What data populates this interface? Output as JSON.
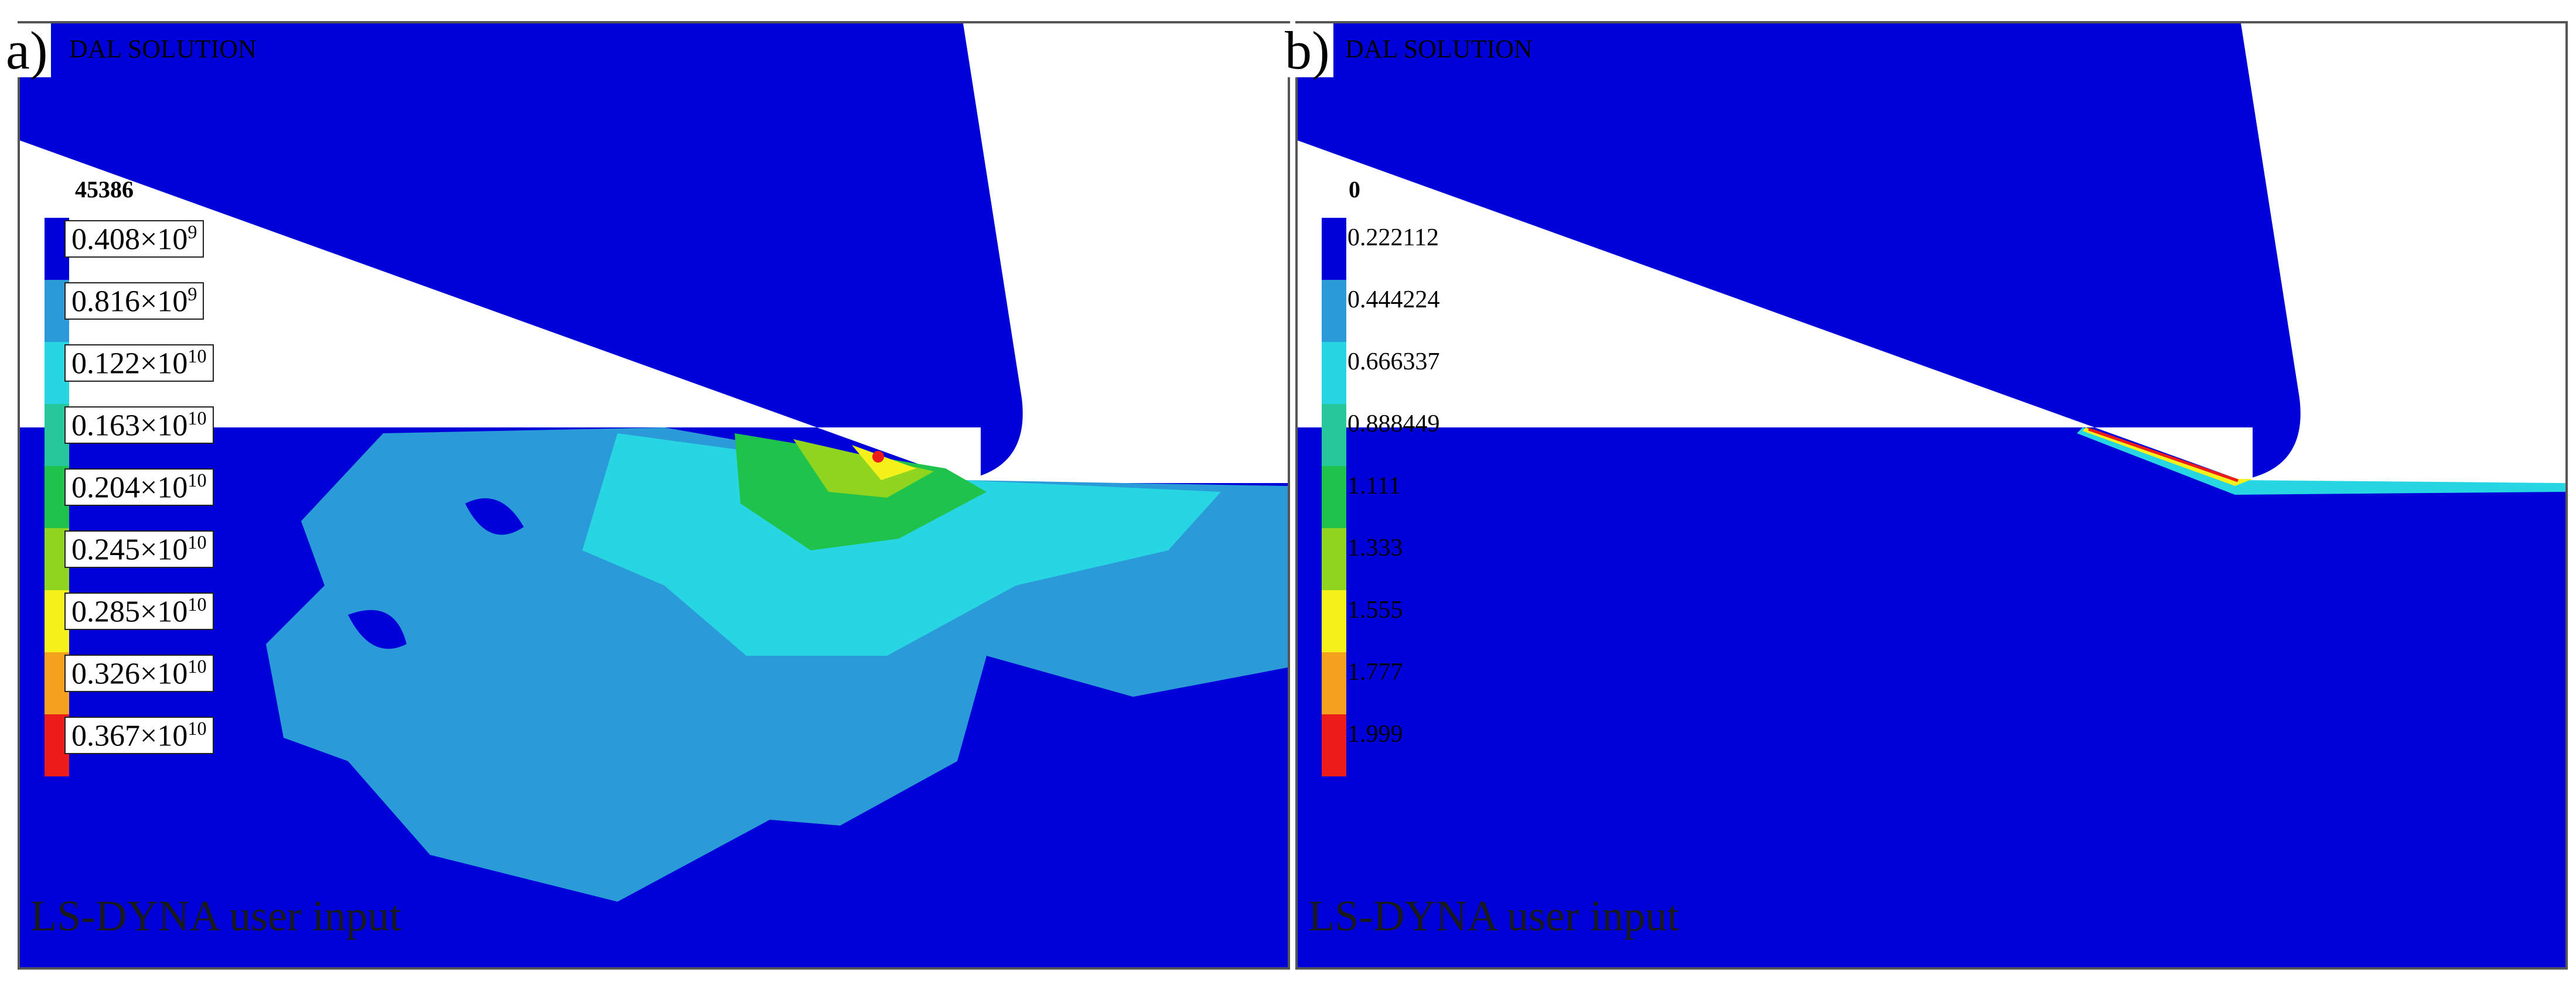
{
  "panel_a": {
    "tag": "a)",
    "title": "DAL SOLUTION",
    "legend_top": "45386",
    "legend": [
      {
        "label": "0.408×10",
        "exp": "9",
        "color": "#0000d8"
      },
      {
        "label": "0.816×10",
        "exp": "9",
        "color": "#2a9ad8"
      },
      {
        "label": "0.122×10",
        "exp": "10",
        "color": "#27d6e2"
      },
      {
        "label": "0.163×10",
        "exp": "10",
        "color": "#26c79a"
      },
      {
        "label": "0.204×10",
        "exp": "10",
        "color": "#1fc24b"
      },
      {
        "label": "0.245×10",
        "exp": "10",
        "color": "#8fd41f"
      },
      {
        "label": "0.285×10",
        "exp": "10",
        "color": "#f4f21a"
      },
      {
        "label": "0.326×10",
        "exp": "10",
        "color": "#f4a21e"
      },
      {
        "label": "0.367×10",
        "exp": "10",
        "color": "#ee1b1b"
      }
    ],
    "footer": "LS-DYNA user input"
  },
  "panel_b": {
    "tag": "b)",
    "title": "DAL SOLUTION",
    "legend_top": "0",
    "legend": [
      {
        "label": "0.222112",
        "color": "#0000d8"
      },
      {
        "label": "0.444224",
        "color": "#2a9ad8"
      },
      {
        "label": "0.666337",
        "color": "#27d6e2"
      },
      {
        "label": "0.888449",
        "color": "#26c79a"
      },
      {
        "label": "1.111",
        "color": "#1fc24b"
      },
      {
        "label": "1.333",
        "color": "#8fd41f"
      },
      {
        "label": "1.555",
        "color": "#f4f21a"
      },
      {
        "label": "1.777",
        "color": "#f4a21e"
      },
      {
        "label": "1.999",
        "color": "#ee1b1b"
      }
    ],
    "footer": "LS-DYNA user input"
  },
  "colors": {
    "field": "#0000d8",
    "low": "#2a9ad8",
    "mid": "#27d6e2",
    "high": "#1fc24b",
    "peak": "#ee1b1b"
  }
}
